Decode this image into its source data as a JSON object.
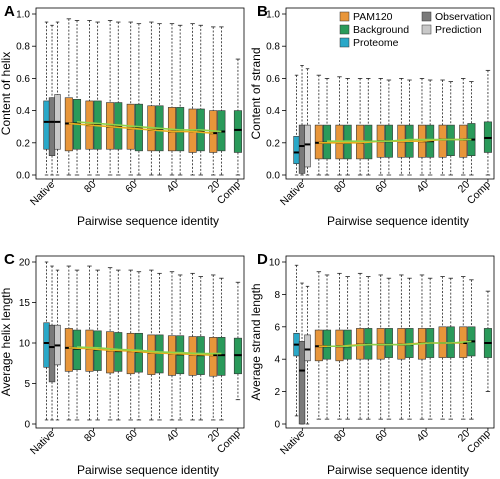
{
  "chart_data": [
    {
      "type": "box",
      "panel_letter": "A",
      "ylabel": "Content of helix",
      "xlabel": "Pairwise sequence identity",
      "ylim": [
        0,
        1
      ],
      "yticks": [
        "0.0",
        "0.2",
        "0.4",
        "0.6",
        "0.8",
        "1.0"
      ],
      "xtick_labels": [
        "Native",
        "80",
        "60",
        "40",
        "20",
        "Comp"
      ],
      "native": [
        {
          "series": "Proteome",
          "q1": 0.16,
          "median": 0.33,
          "q3": 0.46,
          "low": 0.0,
          "high": 0.95
        },
        {
          "series": "Observation",
          "q1": 0.12,
          "median": 0.33,
          "q3": 0.48,
          "low": 0.0,
          "high": 0.93
        },
        {
          "series": "Prediction",
          "q1": 0.16,
          "median": 0.33,
          "q3": 0.5,
          "low": 0.0,
          "high": 0.95
        }
      ],
      "groups": [
        {
          "pam": {
            "q1": 0.15,
            "median": 0.32,
            "q3": 0.48,
            "low": 0.0,
            "high": 0.97
          },
          "bg": {
            "q1": 0.16,
            "median": 0.32,
            "q3": 0.47,
            "low": 0.0,
            "high": 0.96
          }
        },
        {
          "pam": {
            "q1": 0.16,
            "median": 0.31,
            "q3": 0.46,
            "low": 0.0,
            "high": 0.96
          },
          "bg": {
            "q1": 0.16,
            "median": 0.31,
            "q3": 0.46,
            "low": 0.0,
            "high": 0.95
          }
        },
        {
          "pam": {
            "q1": 0.16,
            "median": 0.3,
            "q3": 0.45,
            "low": 0.0,
            "high": 0.96
          },
          "bg": {
            "q1": 0.16,
            "median": 0.3,
            "q3": 0.45,
            "low": 0.0,
            "high": 0.95
          }
        },
        {
          "pam": {
            "q1": 0.16,
            "median": 0.29,
            "q3": 0.44,
            "low": 0.0,
            "high": 0.95
          },
          "bg": {
            "q1": 0.15,
            "median": 0.29,
            "q3": 0.44,
            "low": 0.0,
            "high": 0.94
          }
        },
        {
          "pam": {
            "q1": 0.15,
            "median": 0.28,
            "q3": 0.43,
            "low": 0.0,
            "high": 0.95
          },
          "bg": {
            "q1": 0.15,
            "median": 0.28,
            "q3": 0.43,
            "low": 0.0,
            "high": 0.94
          }
        },
        {
          "pam": {
            "q1": 0.15,
            "median": 0.27,
            "q3": 0.42,
            "low": 0.0,
            "high": 0.94
          },
          "bg": {
            "q1": 0.15,
            "median": 0.27,
            "q3": 0.42,
            "low": 0.0,
            "high": 0.93
          }
        },
        {
          "pam": {
            "q1": 0.14,
            "median": 0.27,
            "q3": 0.41,
            "low": 0.0,
            "high": 0.94
          },
          "bg": {
            "q1": 0.15,
            "median": 0.27,
            "q3": 0.41,
            "low": 0.0,
            "high": 0.93
          }
        },
        {
          "pam": {
            "q1": 0.14,
            "median": 0.26,
            "q3": 0.4,
            "low": 0.0,
            "high": 0.92
          },
          "bg": {
            "q1": 0.15,
            "median": 0.27,
            "q3": 0.4,
            "low": 0.0,
            "high": 0.92
          }
        }
      ],
      "comp": {
        "q1": 0.14,
        "median": 0.28,
        "q3": 0.4,
        "low": 0.0,
        "high": 0.72
      },
      "trend": {
        "pam": [
          0.32,
          0.31,
          0.3,
          0.29,
          0.28,
          0.27,
          0.27,
          0.26
        ],
        "bg": [
          0.33,
          0.32,
          0.31,
          0.3,
          0.29,
          0.28,
          0.28,
          0.27
        ]
      }
    },
    {
      "type": "box",
      "panel_letter": "B",
      "ylabel": "Content of strand",
      "xlabel": "Pairwise sequence identity",
      "ylim": [
        0,
        1
      ],
      "yticks": [
        "0.0",
        "0.2",
        "0.4",
        "0.6",
        "0.8",
        "1.0"
      ],
      "xtick_labels": [
        "Native",
        "80",
        "60",
        "40",
        "20",
        "Comp"
      ],
      "native": [
        {
          "series": "Proteome",
          "q1": 0.07,
          "median": 0.14,
          "q3": 0.24,
          "low": 0.0,
          "high": 0.62
        },
        {
          "series": "Observation",
          "q1": 0.01,
          "median": 0.18,
          "q3": 0.31,
          "low": 0.0,
          "high": 0.68
        },
        {
          "series": "Prediction",
          "q1": 0.05,
          "median": 0.19,
          "q3": 0.31,
          "low": 0.0,
          "high": 0.66
        }
      ],
      "groups": [
        {
          "pam": {
            "q1": 0.1,
            "median": 0.2,
            "q3": 0.31,
            "low": 0.0,
            "high": 0.62
          },
          "bg": {
            "q1": 0.1,
            "median": 0.2,
            "q3": 0.31,
            "low": 0.0,
            "high": 0.6
          }
        },
        {
          "pam": {
            "q1": 0.1,
            "median": 0.2,
            "q3": 0.31,
            "low": 0.0,
            "high": 0.61
          },
          "bg": {
            "q1": 0.1,
            "median": 0.2,
            "q3": 0.31,
            "low": 0.0,
            "high": 0.6
          }
        },
        {
          "pam": {
            "q1": 0.1,
            "median": 0.2,
            "q3": 0.31,
            "low": 0.0,
            "high": 0.6
          },
          "bg": {
            "q1": 0.1,
            "median": 0.21,
            "q3": 0.31,
            "low": 0.0,
            "high": 0.6
          }
        },
        {
          "pam": {
            "q1": 0.11,
            "median": 0.21,
            "q3": 0.31,
            "low": 0.0,
            "high": 0.6
          },
          "bg": {
            "q1": 0.11,
            "median": 0.21,
            "q3": 0.31,
            "low": 0.0,
            "high": 0.59
          }
        },
        {
          "pam": {
            "q1": 0.11,
            "median": 0.21,
            "q3": 0.31,
            "low": 0.0,
            "high": 0.6
          },
          "bg": {
            "q1": 0.11,
            "median": 0.21,
            "q3": 0.31,
            "low": 0.0,
            "high": 0.59
          }
        },
        {
          "pam": {
            "q1": 0.11,
            "median": 0.21,
            "q3": 0.31,
            "low": 0.0,
            "high": 0.6
          },
          "bg": {
            "q1": 0.11,
            "median": 0.21,
            "q3": 0.31,
            "low": 0.0,
            "high": 0.59
          }
        },
        {
          "pam": {
            "q1": 0.11,
            "median": 0.22,
            "q3": 0.31,
            "low": 0.0,
            "high": 0.59
          },
          "bg": {
            "q1": 0.12,
            "median": 0.22,
            "q3": 0.31,
            "low": 0.0,
            "high": 0.58
          }
        },
        {
          "pam": {
            "q1": 0.11,
            "median": 0.22,
            "q3": 0.31,
            "low": 0.0,
            "high": 0.6
          },
          "bg": {
            "q1": 0.12,
            "median": 0.22,
            "q3": 0.32,
            "low": 0.0,
            "high": 0.58
          }
        }
      ],
      "comp": {
        "q1": 0.14,
        "median": 0.23,
        "q3": 0.33,
        "low": 0.0,
        "high": 0.65
      },
      "trend": {
        "pam": [
          0.2,
          0.2,
          0.2,
          0.21,
          0.21,
          0.21,
          0.22,
          0.22
        ],
        "bg": [
          0.21,
          0.21,
          0.21,
          0.21,
          0.22,
          0.22,
          0.22,
          0.22
        ]
      }
    },
    {
      "type": "box",
      "panel_letter": "C",
      "ylabel": "Average helix length",
      "xlabel": "Pairwise sequence identity",
      "ylim": [
        0,
        20
      ],
      "yticks": [
        "0",
        "5",
        "10",
        "15",
        "20"
      ],
      "xtick_labels": [
        "Native",
        "80",
        "60",
        "40",
        "20",
        "Comp"
      ],
      "native": [
        {
          "series": "Proteome",
          "q1": 7.0,
          "median": 10.0,
          "q3": 12.5,
          "low": 0.5,
          "high": 20.0
        },
        {
          "series": "Observation",
          "q1": 5.2,
          "median": 9.5,
          "q3": 12.2,
          "low": 0.5,
          "high": 19.5
        },
        {
          "series": "Prediction",
          "q1": 7.3,
          "median": 9.7,
          "q3": 12.2,
          "low": 0.5,
          "high": 19.0
        }
      ],
      "groups": [
        {
          "pam": {
            "q1": 6.5,
            "median": 9.4,
            "q3": 11.8,
            "low": 0.5,
            "high": 19.5
          },
          "bg": {
            "q1": 6.7,
            "median": 9.3,
            "q3": 11.6,
            "low": 0.5,
            "high": 19.0
          }
        },
        {
          "pam": {
            "q1": 6.5,
            "median": 9.3,
            "q3": 11.6,
            "low": 0.5,
            "high": 19.5
          },
          "bg": {
            "q1": 6.6,
            "median": 9.2,
            "q3": 11.5,
            "low": 0.5,
            "high": 19.0
          }
        },
        {
          "pam": {
            "q1": 6.3,
            "median": 9.1,
            "q3": 11.4,
            "low": 0.5,
            "high": 19.3
          },
          "bg": {
            "q1": 6.5,
            "median": 9.0,
            "q3": 11.3,
            "low": 0.5,
            "high": 19.0
          }
        },
        {
          "pam": {
            "q1": 6.2,
            "median": 9.0,
            "q3": 11.2,
            "low": 0.5,
            "high": 19.0
          },
          "bg": {
            "q1": 6.4,
            "median": 8.9,
            "q3": 11.2,
            "low": 0.5,
            "high": 18.8
          }
        },
        {
          "pam": {
            "q1": 6.1,
            "median": 8.8,
            "q3": 11.0,
            "low": 0.5,
            "high": 19.0
          },
          "bg": {
            "q1": 6.3,
            "median": 8.8,
            "q3": 11.0,
            "low": 0.5,
            "high": 18.6
          }
        },
        {
          "pam": {
            "q1": 6.0,
            "median": 8.7,
            "q3": 10.9,
            "low": 0.5,
            "high": 18.8
          },
          "bg": {
            "q1": 6.2,
            "median": 8.6,
            "q3": 10.9,
            "low": 0.5,
            "high": 18.4
          }
        },
        {
          "pam": {
            "q1": 6.0,
            "median": 8.6,
            "q3": 10.8,
            "low": 0.5,
            "high": 18.6
          },
          "bg": {
            "q1": 6.1,
            "median": 8.5,
            "q3": 10.8,
            "low": 0.5,
            "high": 18.2
          }
        },
        {
          "pam": {
            "q1": 5.9,
            "median": 8.5,
            "q3": 10.7,
            "low": 0.5,
            "high": 18.4
          },
          "bg": {
            "q1": 6.0,
            "median": 8.5,
            "q3": 10.7,
            "low": 0.5,
            "high": 18.0
          }
        }
      ],
      "comp": {
        "q1": 6.2,
        "median": 8.5,
        "q3": 10.6,
        "low": 3.0,
        "high": 17.5
      },
      "trend": {
        "pam": [
          9.4,
          9.3,
          9.1,
          9.0,
          8.8,
          8.7,
          8.6,
          8.5
        ],
        "bg": [
          9.5,
          9.4,
          9.2,
          9.1,
          8.9,
          8.8,
          8.7,
          8.7
        ]
      }
    },
    {
      "type": "box",
      "panel_letter": "D",
      "ylabel": "Average strand length",
      "xlabel": "Pairwise sequence identity",
      "ylim": [
        0,
        10
      ],
      "yticks": [
        "0",
        "2",
        "4",
        "6",
        "8",
        "10"
      ],
      "xtick_labels": [
        "Native",
        "80",
        "60",
        "40",
        "20",
        "Comp"
      ],
      "native": [
        {
          "series": "Proteome",
          "q1": 4.2,
          "median": 4.9,
          "q3": 5.6,
          "low": 0.5,
          "high": 9.8
        },
        {
          "series": "Observation",
          "q1": 0.0,
          "median": 3.3,
          "q3": 5.1,
          "low": 0.0,
          "high": 8.7
        },
        {
          "series": "Prediction",
          "q1": 3.9,
          "median": 4.6,
          "q3": 5.5,
          "low": 0.0,
          "high": 8.5
        }
      ],
      "groups": [
        {
          "pam": {
            "q1": 3.9,
            "median": 4.8,
            "q3": 5.8,
            "low": 0.3,
            "high": 9.4
          },
          "bg": {
            "q1": 4.0,
            "median": 4.8,
            "q3": 5.8,
            "low": 0.3,
            "high": 9.2
          }
        },
        {
          "pam": {
            "q1": 3.9,
            "median": 4.8,
            "q3": 5.8,
            "low": 0.3,
            "high": 9.3
          },
          "bg": {
            "q1": 4.0,
            "median": 4.8,
            "q3": 5.8,
            "low": 0.3,
            "high": 9.1
          }
        },
        {
          "pam": {
            "q1": 4.0,
            "median": 4.9,
            "q3": 5.9,
            "low": 0.3,
            "high": 9.3
          },
          "bg": {
            "q1": 4.0,
            "median": 4.9,
            "q3": 5.9,
            "low": 0.3,
            "high": 9.1
          }
        },
        {
          "pam": {
            "q1": 4.0,
            "median": 4.9,
            "q3": 5.9,
            "low": 0.3,
            "high": 9.2
          },
          "bg": {
            "q1": 4.1,
            "median": 4.9,
            "q3": 5.9,
            "low": 0.3,
            "high": 9.0
          }
        },
        {
          "pam": {
            "q1": 4.0,
            "median": 4.9,
            "q3": 5.9,
            "low": 0.3,
            "high": 9.2
          },
          "bg": {
            "q1": 4.1,
            "median": 4.9,
            "q3": 5.9,
            "low": 0.3,
            "high": 9.0
          }
        },
        {
          "pam": {
            "q1": 4.0,
            "median": 5.0,
            "q3": 5.9,
            "low": 0.3,
            "high": 9.2
          },
          "bg": {
            "q1": 4.1,
            "median": 5.0,
            "q3": 5.9,
            "low": 0.3,
            "high": 9.0
          }
        },
        {
          "pam": {
            "q1": 4.1,
            "median": 5.0,
            "q3": 6.0,
            "low": 0.3,
            "high": 9.1
          },
          "bg": {
            "q1": 4.1,
            "median": 5.0,
            "q3": 6.0,
            "low": 0.3,
            "high": 9.0
          }
        },
        {
          "pam": {
            "q1": 4.1,
            "median": 5.0,
            "q3": 6.0,
            "low": 0.3,
            "high": 9.1
          },
          "bg": {
            "q1": 4.2,
            "median": 5.1,
            "q3": 6.0,
            "low": 0.3,
            "high": 8.9
          }
        }
      ],
      "comp": {
        "q1": 4.1,
        "median": 5.0,
        "q3": 5.9,
        "low": 2.0,
        "high": 8.2
      },
      "trend": {
        "pam": [
          4.8,
          4.8,
          4.9,
          4.9,
          4.9,
          5.0,
          5.0,
          5.0
        ],
        "bg": [
          4.8,
          4.8,
          4.9,
          4.9,
          4.9,
          5.0,
          5.0,
          5.1
        ]
      }
    }
  ],
  "legend": {
    "placement": "top of panel B",
    "items": [
      {
        "label": "PAM120",
        "color": "#e8963a"
      },
      {
        "label": "Observation",
        "color": "#7a7a7a"
      },
      {
        "label": "Background",
        "color": "#2a9a5a"
      },
      {
        "label": "Prediction",
        "color": "#c8c8c8"
      },
      {
        "label": "Proteome",
        "color": "#2aa8c8"
      }
    ]
  },
  "colors": {
    "pam120": "#e8963a",
    "background": "#2a9a5a",
    "proteome": "#2aa8c8",
    "observation": "#7a7a7a",
    "prediction": "#c8c8c8",
    "trend_pam": "#e8b020",
    "trend_bg": "#8fd24a"
  }
}
